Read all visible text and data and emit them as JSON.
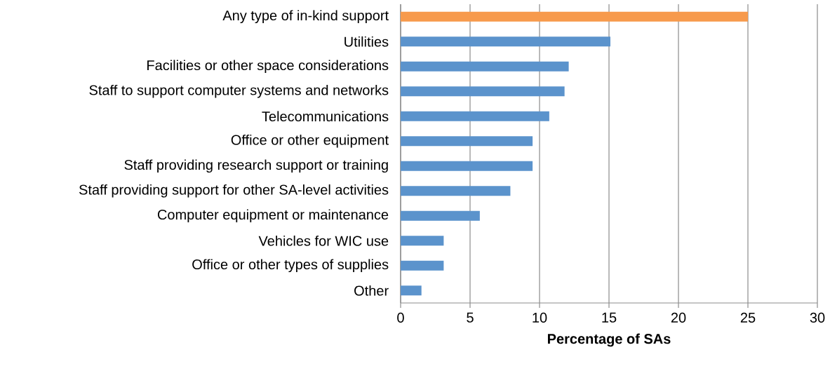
{
  "chart_data": {
    "type": "bar",
    "orientation": "horizontal",
    "xlabel": "Percentage of SAs",
    "categories": [
      "Any type of in-kind support",
      "Utilities",
      "Facilities or other space considerations",
      "Staff to support computer systems and networks",
      "Telecommunications",
      "Office or other equipment",
      "Staff providing research support or training",
      "Staff providing support for other SA-level activities",
      "Computer equipment or maintenance",
      "Vehicles for WIC use",
      "Office or other types of supplies",
      "Other"
    ],
    "values": [
      25,
      15.1,
      12.1,
      11.8,
      10.7,
      9.5,
      9.5,
      7.9,
      5.7,
      3.1,
      3.1,
      1.5
    ],
    "colors": [
      "#f79a4c",
      "#5b93cc",
      "#5b93cc",
      "#5b93cc",
      "#5b93cc",
      "#5b93cc",
      "#5b93cc",
      "#5b93cc",
      "#5b93cc",
      "#5b93cc",
      "#5b93cc",
      "#5b93cc"
    ],
    "xlim": [
      0,
      30
    ],
    "xticks": [
      0,
      5,
      10,
      15,
      20,
      25,
      30
    ],
    "grid": "x"
  }
}
